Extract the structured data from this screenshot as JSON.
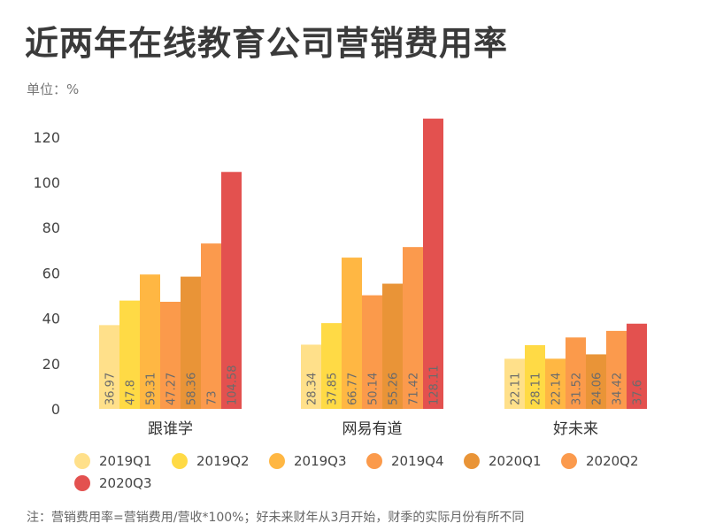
{
  "title": "近两年在线教育公司营销费用率",
  "unit_label": "单位：%",
  "note": "注：营销费用率=营销费用/营收*100%；好未来财年从3月开始，财季的实际月份有所不同",
  "chart_data": {
    "type": "bar",
    "categories": [
      "跟谁学",
      "网易有道",
      "好未来"
    ],
    "ylim": [
      0,
      130
    ],
    "yticks": [
      0,
      20,
      40,
      60,
      80,
      100,
      120
    ],
    "grid": false,
    "legend_position": "bottom",
    "series": [
      {
        "name": "2019Q1",
        "color": "#FFE08A",
        "values": [
          36.97,
          28.34,
          22.11
        ],
        "labels": [
          "36.97",
          "28.34",
          "22.11"
        ]
      },
      {
        "name": "2019Q2",
        "color": "#FFDA45",
        "values": [
          47.8,
          37.85,
          28.11
        ],
        "labels": [
          "47.8",
          "37.85",
          "28.11"
        ]
      },
      {
        "name": "2019Q3",
        "color": "#FFB743",
        "values": [
          59.31,
          66.77,
          22.14
        ],
        "labels": [
          "59.31",
          "66.77",
          "22.14"
        ]
      },
      {
        "name": "2019Q4",
        "color": "#FB9A4B",
        "values": [
          47.27,
          50.14,
          31.52
        ],
        "labels": [
          "47.27",
          "50.14",
          "31.52"
        ]
      },
      {
        "name": "2020Q1",
        "color": "#E99437",
        "values": [
          58.36,
          55.26,
          24.06
        ],
        "labels": [
          "58.36",
          "55.26",
          "24.06"
        ]
      },
      {
        "name": "2020Q2",
        "color": "#FB9A4D",
        "values": [
          73,
          71.42,
          34.42
        ],
        "labels": [
          "73",
          "71.42",
          "34.42"
        ]
      },
      {
        "name": "2020Q3",
        "color": "#E3514F",
        "values": [
          104.58,
          128.11,
          37.6
        ],
        "labels": [
          "104.58",
          "128.11",
          "37.6"
        ]
      }
    ]
  }
}
